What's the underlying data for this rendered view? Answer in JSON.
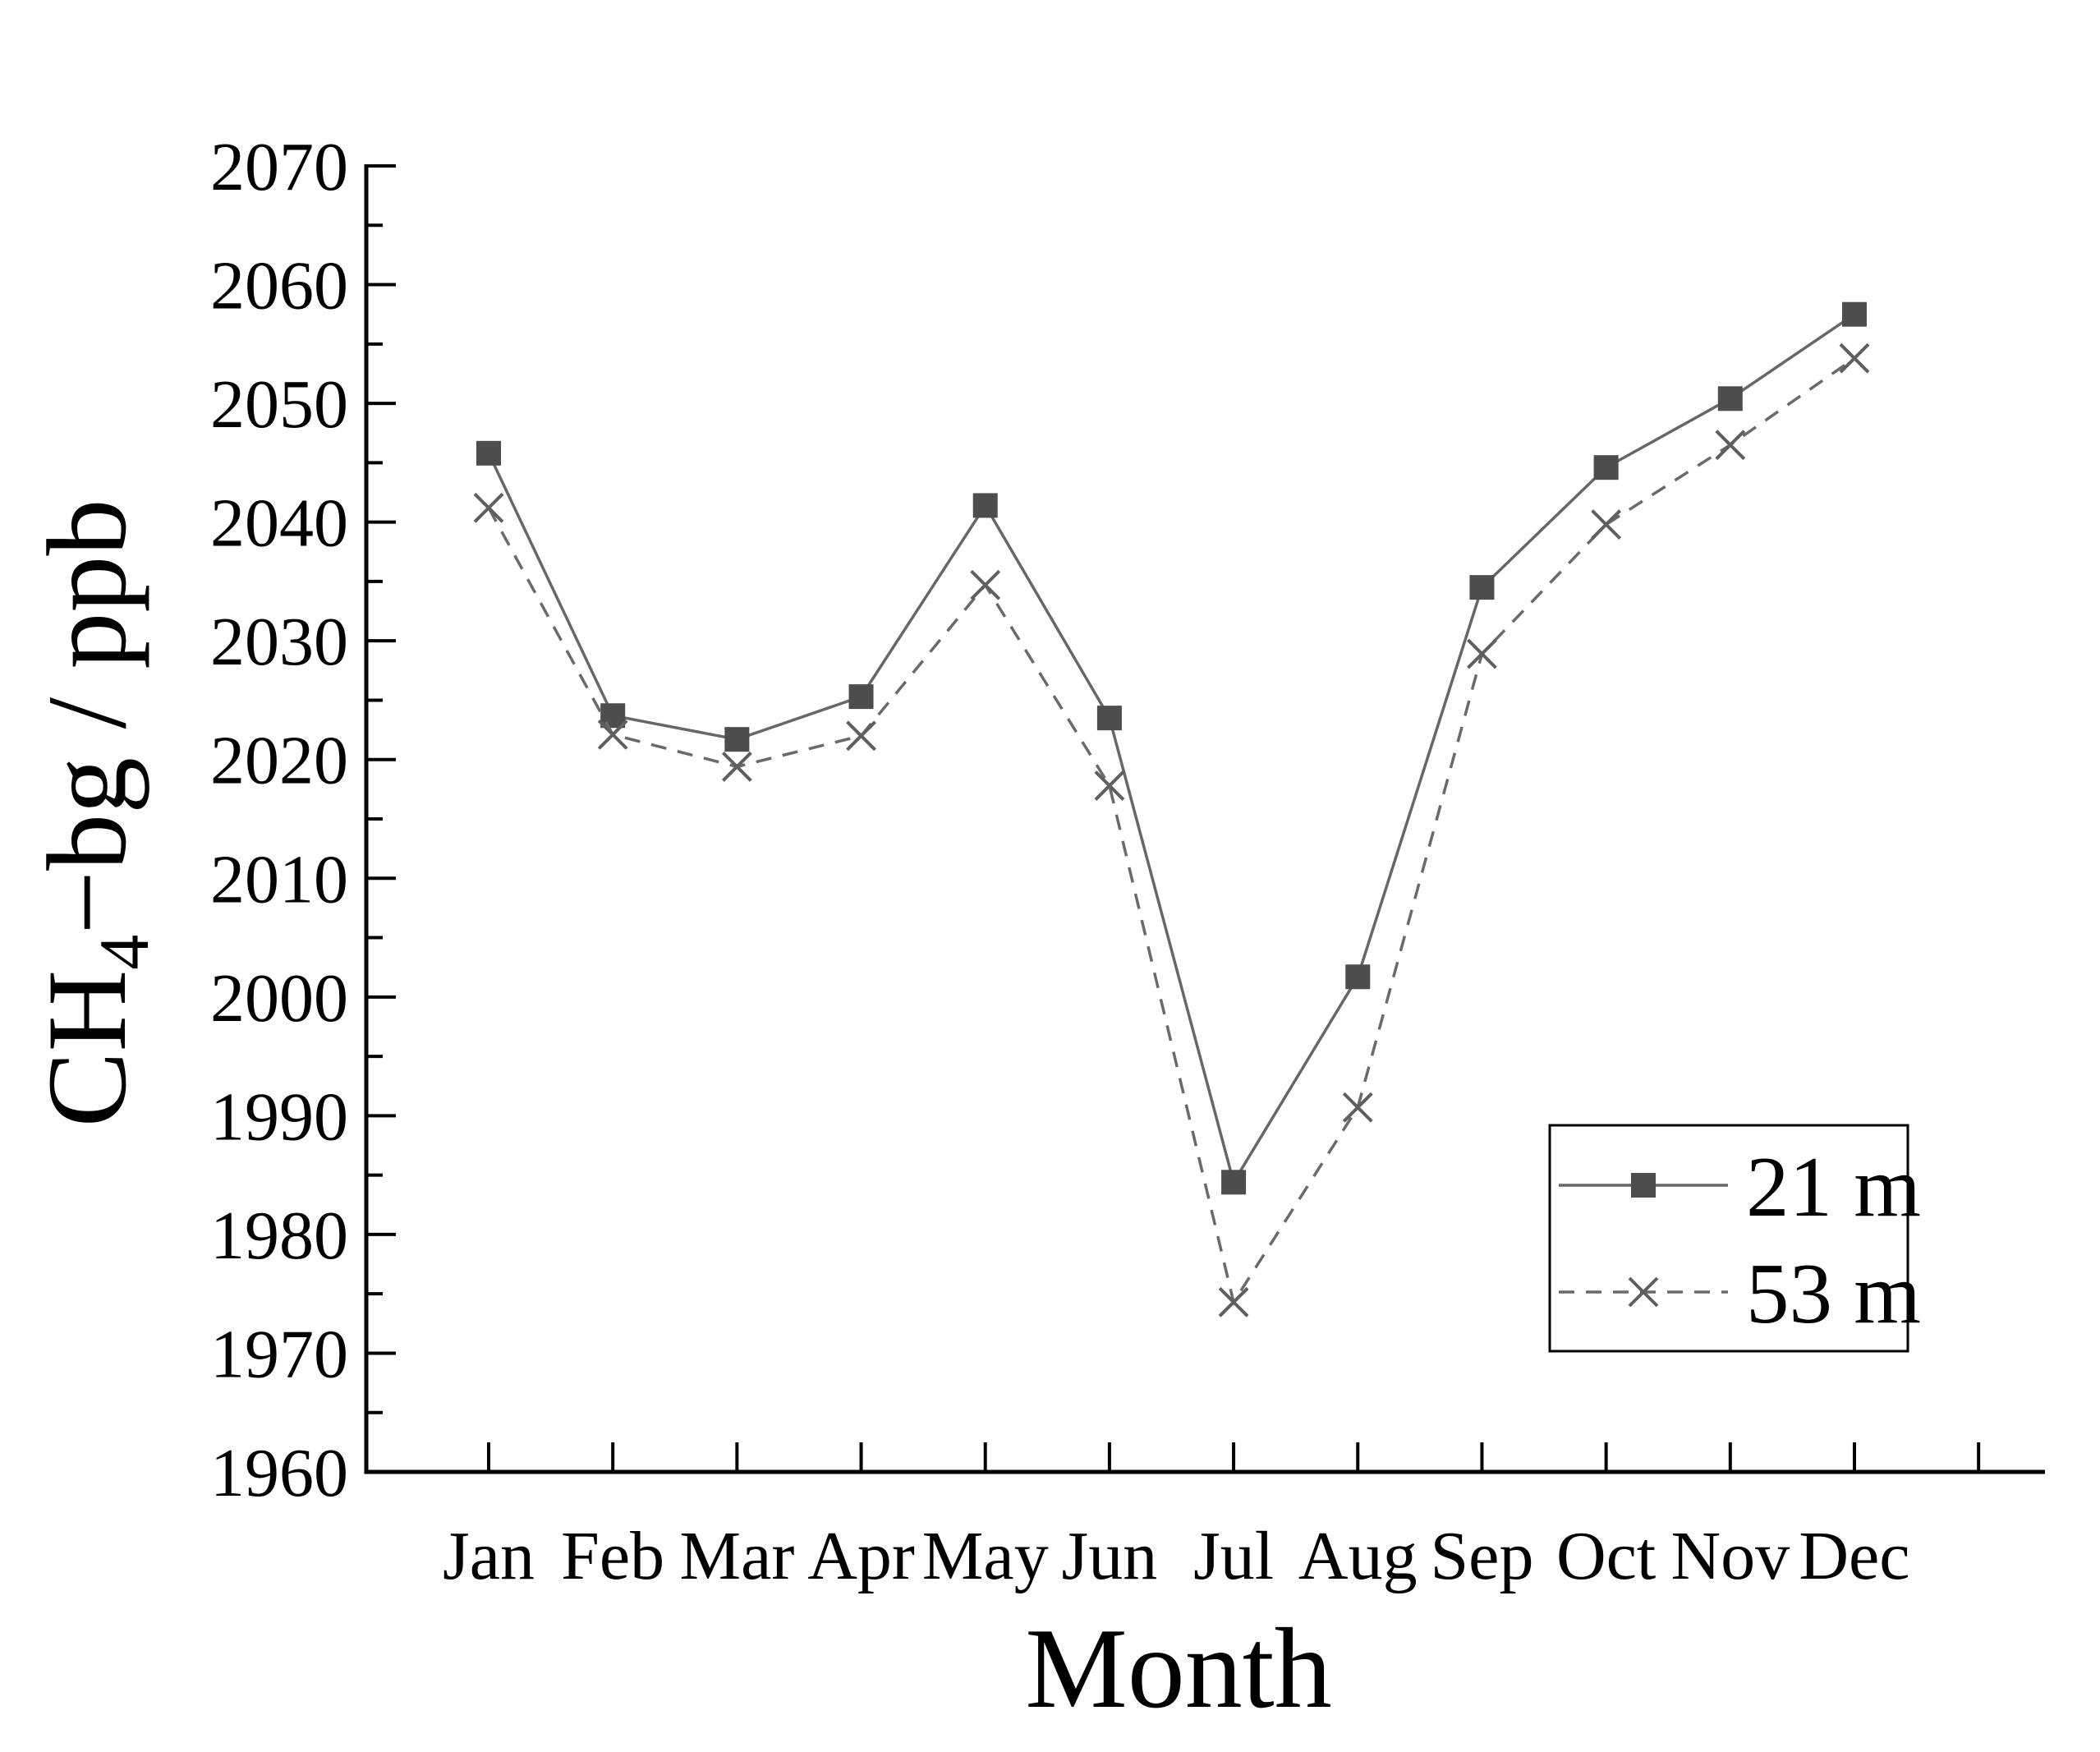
{
  "page": {
    "background": "#ffffff"
  },
  "chart_data": {
    "type": "line",
    "title": "",
    "xlabel": "Month",
    "ylabel": {
      "prefix": "CH",
      "subscript": "4",
      "suffix": "−bg / ppb",
      "plain": "CH4−bg / ppb"
    },
    "categories": [
      "Jan",
      "Feb",
      "Mar",
      "Apr",
      "May",
      "Jun",
      "Jul",
      "Aug",
      "Sep",
      "Oct",
      "Nov",
      "Dec"
    ],
    "series": [
      {
        "name": "21 m",
        "line": "solid",
        "marker": "square",
        "line_color": "#676767",
        "marker_color": "#4d4d4d",
        "values": [
          2045.8,
          2023.7,
          2021.7,
          2025.3,
          2041.4,
          2023.5,
          1984.4,
          2001.7,
          2034.5,
          2044.6,
          2050.4,
          2057.5
        ]
      },
      {
        "name": "53 m",
        "line": "dashed",
        "marker": "x",
        "line_color": "#6a6a6a",
        "marker_color": "#5f5f5f",
        "values": [
          2041.2,
          2022.1,
          2019.4,
          2022.0,
          2034.7,
          2017.8,
          1974.3,
          1990.7,
          2028.9,
          2039.8,
          2046.5,
          2053.8
        ]
      }
    ],
    "ylim": [
      1960,
      2070
    ],
    "y_major_step": 10,
    "y_minor_step": 5,
    "y_tick_labels": [
      "1960",
      "1970",
      "1980",
      "1990",
      "2000",
      "2010",
      "2020",
      "2030",
      "2040",
      "2050",
      "2060",
      "2070"
    ],
    "grid": false,
    "legend_position": "inside-right",
    "axis_color": "#000000"
  }
}
